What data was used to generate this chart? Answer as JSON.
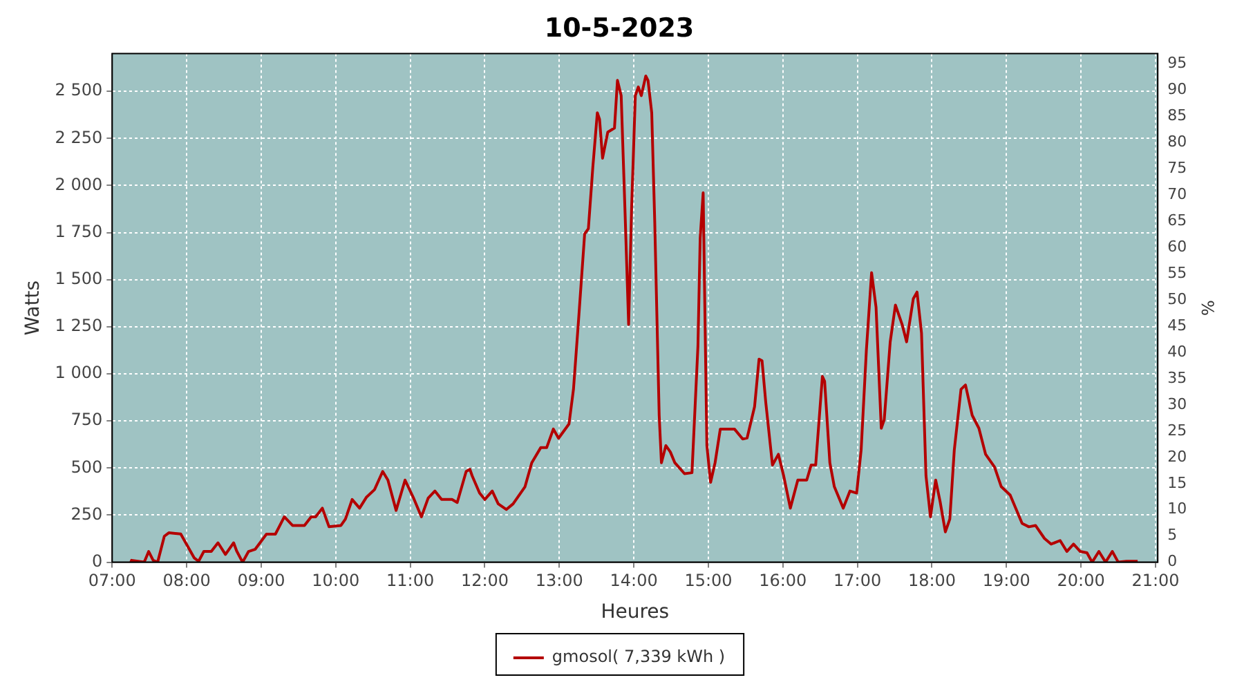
{
  "chart_data": {
    "type": "line",
    "title": "10-5-2023",
    "xlabel": "Heures",
    "ylabel": "Watts",
    "y2label": "%",
    "x": [
      7.25,
      7.26,
      7.43,
      7.49,
      7.55,
      7.61,
      7.7,
      7.76,
      7.92,
      8.1,
      8.16,
      8.23,
      8.33,
      8.42,
      8.52,
      8.63,
      8.67,
      8.75,
      8.83,
      8.92,
      9.07,
      9.19,
      9.31,
      9.42,
      9.58,
      9.67,
      9.73,
      9.82,
      9.91,
      10.07,
      10.13,
      10.22,
      10.32,
      10.41,
      10.52,
      10.63,
      10.7,
      10.81,
      10.93,
      11.04,
      11.15,
      11.24,
      11.33,
      11.42,
      11.56,
      11.63,
      11.75,
      11.8,
      11.83,
      11.93,
      12.0,
      12.1,
      12.18,
      12.29,
      12.38,
      12.54,
      12.63,
      12.75,
      12.83,
      12.92,
      12.99,
      13.13,
      13.19,
      13.26,
      13.34,
      13.39,
      13.45,
      13.51,
      13.54,
      13.58,
      13.65,
      13.74,
      13.78,
      13.83,
      13.88,
      13.93,
      13.97,
      14.02,
      14.06,
      14.1,
      14.16,
      14.19,
      14.24,
      14.28,
      14.34,
      14.37,
      14.43,
      14.49,
      14.55,
      14.68,
      14.78,
      14.86,
      14.89,
      14.93,
      14.98,
      15.03,
      15.09,
      15.16,
      15.35,
      15.46,
      15.52,
      15.62,
      15.68,
      15.72,
      15.77,
      15.86,
      15.94,
      16.01,
      16.1,
      16.2,
      16.32,
      16.38,
      16.44,
      16.53,
      16.56,
      16.63,
      16.69,
      16.81,
      16.9,
      16.99,
      17.05,
      17.12,
      17.19,
      17.25,
      17.32,
      17.36,
      17.44,
      17.51,
      17.6,
      17.66,
      17.75,
      17.8,
      17.86,
      17.92,
      17.98,
      18.05,
      18.11,
      18.18,
      18.24,
      18.3,
      18.39,
      18.45,
      18.54,
      18.63,
      18.72,
      18.84,
      18.93,
      19.05,
      19.21,
      19.3,
      19.39,
      19.51,
      19.6,
      19.72,
      19.81,
      19.9,
      19.99,
      20.08,
      20.15,
      20.24,
      20.33,
      20.42,
      20.5,
      20.61,
      20.76
    ],
    "series": [
      {
        "name": "gmosol( 7,339 kWh )",
        "color": "#b40000",
        "values": [
          0,
          10,
          0,
          57,
          10,
          0,
          138,
          156,
          150,
          23,
          5,
          57,
          57,
          103,
          41,
          103,
          60,
          0,
          57,
          69,
          149,
          149,
          241,
          195,
          195,
          241,
          241,
          287,
          188,
          195,
          229,
          333,
          287,
          344,
          385,
          482,
          436,
          275,
          436,
          344,
          241,
          340,
          378,
          333,
          333,
          317,
          482,
          493,
          459,
          367,
          333,
          378,
          310,
          280,
          310,
          401,
          528,
          608,
          608,
          707,
          658,
          734,
          918,
          1296,
          1743,
          1771,
          2099,
          2386,
          2351,
          2145,
          2283,
          2305,
          2558,
          2477,
          1881,
          1262,
          1881,
          2477,
          2523,
          2477,
          2581,
          2558,
          2386,
          1812,
          780,
          528,
          619,
          585,
          528,
          470,
          475,
          1147,
          1720,
          1961,
          619,
          424,
          528,
          707,
          707,
          654,
          660,
          826,
          1078,
          1070,
          849,
          516,
          573,
          459,
          287,
          436,
          436,
          516,
          516,
          986,
          960,
          528,
          401,
          287,
          378,
          367,
          596,
          1124,
          1537,
          1353,
          711,
          757,
          1170,
          1365,
          1262,
          1170,
          1399,
          1434,
          1216,
          459,
          241,
          436,
          321,
          161,
          229,
          596,
          918,
          941,
          780,
          711,
          573,
          505,
          401,
          356,
          206,
          188,
          195,
          126,
          96,
          115,
          57,
          96,
          57,
          50,
          0,
          57,
          0,
          57,
          0,
          5,
          5
        ]
      }
    ],
    "xlim": [
      7,
      21.03
    ],
    "xticks": [
      {
        "value": 7,
        "label": "07:00"
      },
      {
        "value": 8,
        "label": "08:00"
      },
      {
        "value": 9,
        "label": "09:00"
      },
      {
        "value": 10,
        "label": "10:00"
      },
      {
        "value": 11,
        "label": "11:00"
      },
      {
        "value": 12,
        "label": "12:00"
      },
      {
        "value": 13,
        "label": "13:00"
      },
      {
        "value": 14,
        "label": "14:00"
      },
      {
        "value": 15,
        "label": "15:00"
      },
      {
        "value": 16,
        "label": "16:00"
      },
      {
        "value": 17,
        "label": "17:00"
      },
      {
        "value": 18,
        "label": "18:00"
      },
      {
        "value": 19,
        "label": "19:00"
      },
      {
        "value": 20,
        "label": "20:00"
      },
      {
        "value": 21,
        "label": "21:00"
      }
    ],
    "ylim": [
      0,
      2700
    ],
    "yticks": [
      0,
      250,
      500,
      750,
      {
        "value": 1000,
        "label": "1 000"
      },
      {
        "value": 1250,
        "label": "1 250"
      },
      {
        "value": 1500,
        "label": "1 500"
      },
      {
        "value": 1750,
        "label": "1 750"
      },
      {
        "value": 2000,
        "label": "2 000"
      },
      {
        "value": 2250,
        "label": "2 250"
      },
      {
        "value": 2500,
        "label": "2 500"
      }
    ],
    "y2lim": [
      0,
      97
    ],
    "y2ticks": [
      0,
      5,
      10,
      15,
      20,
      25,
      30,
      35,
      40,
      45,
      50,
      55,
      60,
      65,
      70,
      75,
      80,
      85,
      90,
      95
    ],
    "grid": true,
    "legend": "bottom",
    "marker": "none",
    "line_style": "solid"
  }
}
